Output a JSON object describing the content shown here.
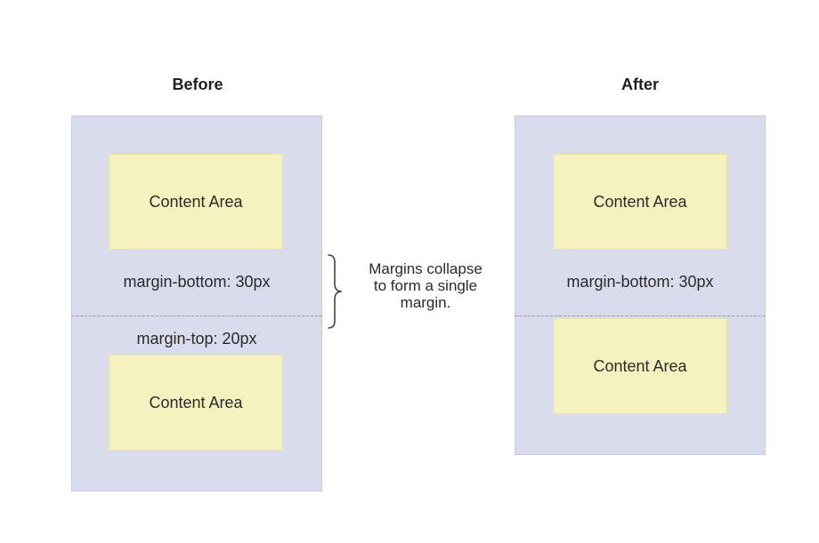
{
  "before": {
    "title": "Before",
    "top_content": "Content Area",
    "bottom_margin_label": "margin-bottom: 30px",
    "top_margin_label": "margin-top: 20px",
    "bottom_content": "Content Area"
  },
  "after": {
    "title": "After",
    "top_content": "Content Area",
    "margin_label": "margin-bottom: 30px",
    "bottom_content": "Content Area"
  },
  "annotation": {
    "line1": "Margins collapse",
    "line2": "to form a single",
    "line3": "margin."
  },
  "colors": {
    "margin_box": "#d9dcec",
    "content_box": "#f6f2c0"
  }
}
